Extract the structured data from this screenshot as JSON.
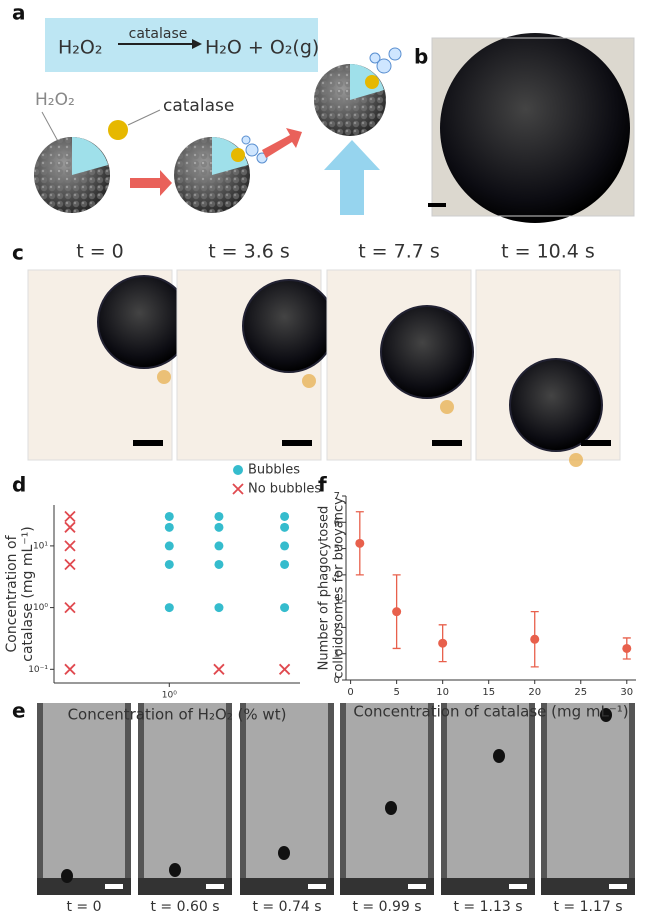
{
  "panels": {
    "a": {
      "label": "a",
      "equation": {
        "reactant": "H₂O₂",
        "enzyme": "catalase",
        "products": "H₂O + O₂(g)"
      },
      "substrate": "H₂O₂",
      "enzyme": "catalase"
    },
    "b": {
      "label": "b"
    },
    "c": {
      "label": "c",
      "times": [
        "t = 0",
        "t = 3.6 s",
        "t = 7.7 s",
        "t = 10.4 s"
      ]
    },
    "e": {
      "label": "e",
      "times": [
        "t = 0",
        "t = 0.60 s",
        "t = 0.74 s",
        "t = 0.99 s",
        "t = 1.13 s",
        "t = 1.17 s"
      ]
    }
  },
  "chart_data": [
    {
      "type": "scatter",
      "label": "d",
      "xlabel": "Concentration of H₂O₂ (% wt)",
      "ylabel": [
        "Concentration of",
        "catalase (mg mL⁻¹)"
      ],
      "log_x": true,
      "log_y": true,
      "xlim": [
        0.2,
        6.2
      ],
      "ylim": [
        0.06,
        46
      ],
      "xticks": [
        {
          "value": 1,
          "label": "10⁰"
        }
      ],
      "yticks": [
        {
          "value": 0.1,
          "label": "10⁻¹"
        },
        {
          "value": 1,
          "label": "10⁰"
        },
        {
          "value": 10,
          "label": "10¹"
        }
      ],
      "legend": "top-right",
      "series": [
        {
          "name": "Bubbles",
          "color": "#35bccd",
          "marker": "circle",
          "x": [
            1,
            1,
            1,
            1,
            1,
            2,
            2,
            2,
            2,
            2,
            5,
            5,
            5,
            5,
            5
          ],
          "values": [
            1,
            5,
            10,
            20,
            30,
            1,
            5,
            10,
            20,
            30,
            1,
            5,
            10,
            20,
            30
          ]
        },
        {
          "name": "No bubbles",
          "color": "#e0494f",
          "marker": "x",
          "x": [
            0.25,
            0.25,
            0.25,
            0.25,
            0.25,
            0.25,
            2,
            5
          ],
          "values": [
            0.1,
            1,
            5,
            10,
            20,
            30,
            0.1,
            0.1
          ]
        }
      ]
    },
    {
      "type": "errorbar",
      "label": "f",
      "xlabel": "Concentration of catalase (mg mL⁻¹)",
      "ylabel": [
        "Number of phagocytosed",
        "colloidosomes for buoyancy"
      ],
      "xlim": [
        -0.5,
        31
      ],
      "ylim": [
        0,
        7
      ],
      "xticks": [
        0,
        5,
        10,
        15,
        20,
        25,
        30
      ],
      "yticks": [
        0,
        1,
        2,
        3,
        4,
        5,
        6,
        7
      ],
      "x": [
        1,
        5,
        10,
        20,
        30
      ],
      "series": [
        {
          "color": "#e8604c",
          "values": [
            5.2,
            2.6,
            1.4,
            1.55,
            1.2
          ],
          "errors": [
            1.2,
            1.4,
            0.7,
            1.05,
            0.4
          ]
        }
      ]
    }
  ]
}
